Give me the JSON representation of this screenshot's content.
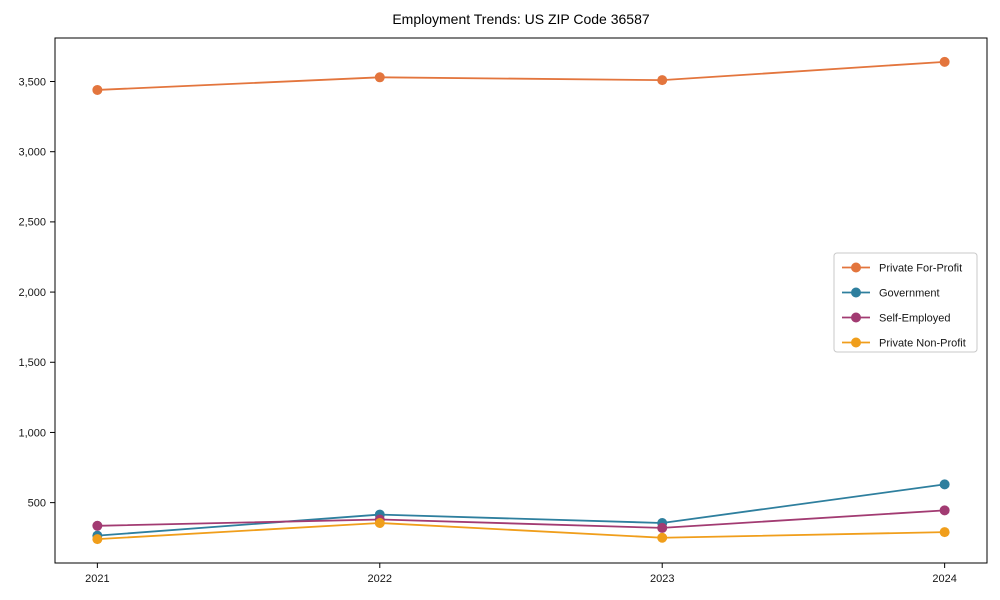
{
  "page": {
    "background_color": "#ffffff"
  },
  "chart_data": {
    "type": "line",
    "title": "Employment Trends: US ZIP Code 36587",
    "xlabel": "",
    "ylabel": "",
    "grid": false,
    "marker": "circle",
    "x": [
      2021,
      2022,
      2023,
      2024
    ],
    "x_tick_labels": [
      "2021",
      "2022",
      "2023",
      "2024"
    ],
    "y_ticks": [
      500,
      1000,
      1500,
      2000,
      2500,
      3000,
      3500
    ],
    "y_tick_labels": [
      "500",
      "1,000",
      "1,500",
      "2,000",
      "2,500",
      "3,000",
      "3,500"
    ],
    "xlim": [
      2020.85,
      2024.15
    ],
    "ylim": [
      70,
      3810
    ],
    "series": [
      {
        "name": "Private For-Profit",
        "color": "#E3753D",
        "values": [
          3440,
          3530,
          3510,
          3640
        ]
      },
      {
        "name": "Government",
        "color": "#2E7F9E",
        "values": [
          265,
          415,
          355,
          630
        ]
      },
      {
        "name": "Self-Employed",
        "color": "#A23B72",
        "values": [
          335,
          380,
          320,
          445
        ]
      },
      {
        "name": "Private Non-Profit",
        "color": "#F09E1B",
        "values": [
          240,
          355,
          250,
          290
        ]
      }
    ],
    "legend": {
      "position": "center-right",
      "background": "#ffffff",
      "border_color": "#c9c9c9"
    },
    "axis_color": "#000000"
  }
}
